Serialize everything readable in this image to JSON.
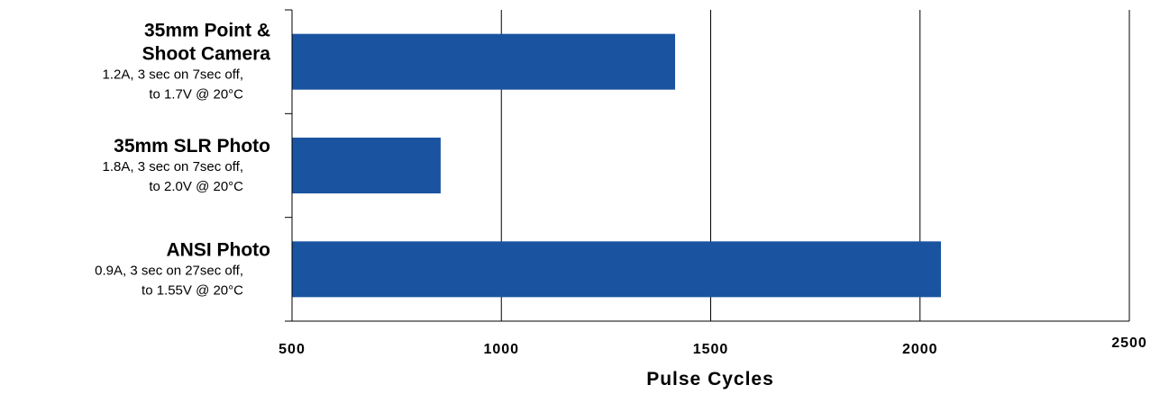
{
  "chart_data": {
    "type": "bar",
    "orientation": "horizontal",
    "categories": [
      {
        "title_lines": [
          "35mm Point &",
          "Shoot Camera"
        ],
        "sub_lines": [
          "1.2A, 3 sec on 7sec off,",
          "to 1.7V @ 20°C"
        ]
      },
      {
        "title_lines": [
          "35mm SLR Photo"
        ],
        "sub_lines": [
          "1.8A, 3 sec on 7sec off,",
          "to 2.0V @ 20°C"
        ]
      },
      {
        "title_lines": [
          "ANSI Photo"
        ],
        "sub_lines": [
          "0.9A, 3 sec on 27sec off,",
          "to 1.55V @ 20°C"
        ]
      }
    ],
    "values": [
      1415,
      855,
      2050
    ],
    "xlabel": "Pulse Cycles",
    "xlim": [
      500,
      2500
    ],
    "xticks": [
      500,
      1000,
      1500,
      2000,
      2500
    ],
    "xtick_labels": [
      "500",
      "1000",
      "1500",
      "2000",
      "2500"
    ],
    "grid": "vertical",
    "bar_color": "#1a53a0",
    "axis_color": "#000000"
  }
}
